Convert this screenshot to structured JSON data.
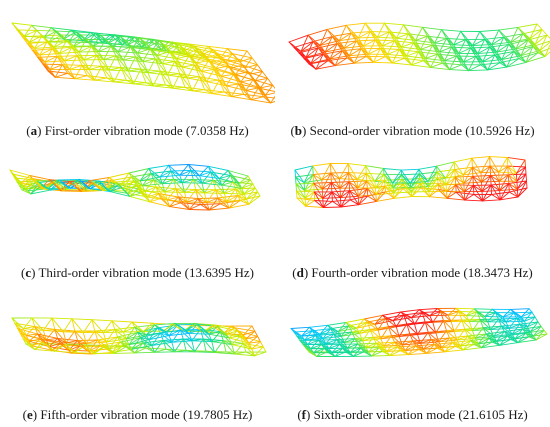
{
  "panels": [
    {
      "letter": "a",
      "text": "First-order vibration mode (7.0358 Hz)"
    },
    {
      "letter": "b",
      "text": "Second-order vibration mode (10.5926 Hz)"
    },
    {
      "letter": "c",
      "text": "Third-order vibration mode (13.6395 Hz)"
    },
    {
      "letter": "d",
      "text": "Fourth-order vibration mode (18.3473 Hz)"
    },
    {
      "letter": "e",
      "text": "Fifth-order vibration mode (19.7805 Hz)"
    },
    {
      "letter": "f",
      "text": "Sixth-order vibration mode (21.6105 Hz)"
    }
  ],
  "colormap": [
    "#1f3cff",
    "#00c8ff",
    "#19e07a",
    "#c8f000",
    "#ffd200",
    "#ff7a00",
    "#ff1a1a"
  ]
}
